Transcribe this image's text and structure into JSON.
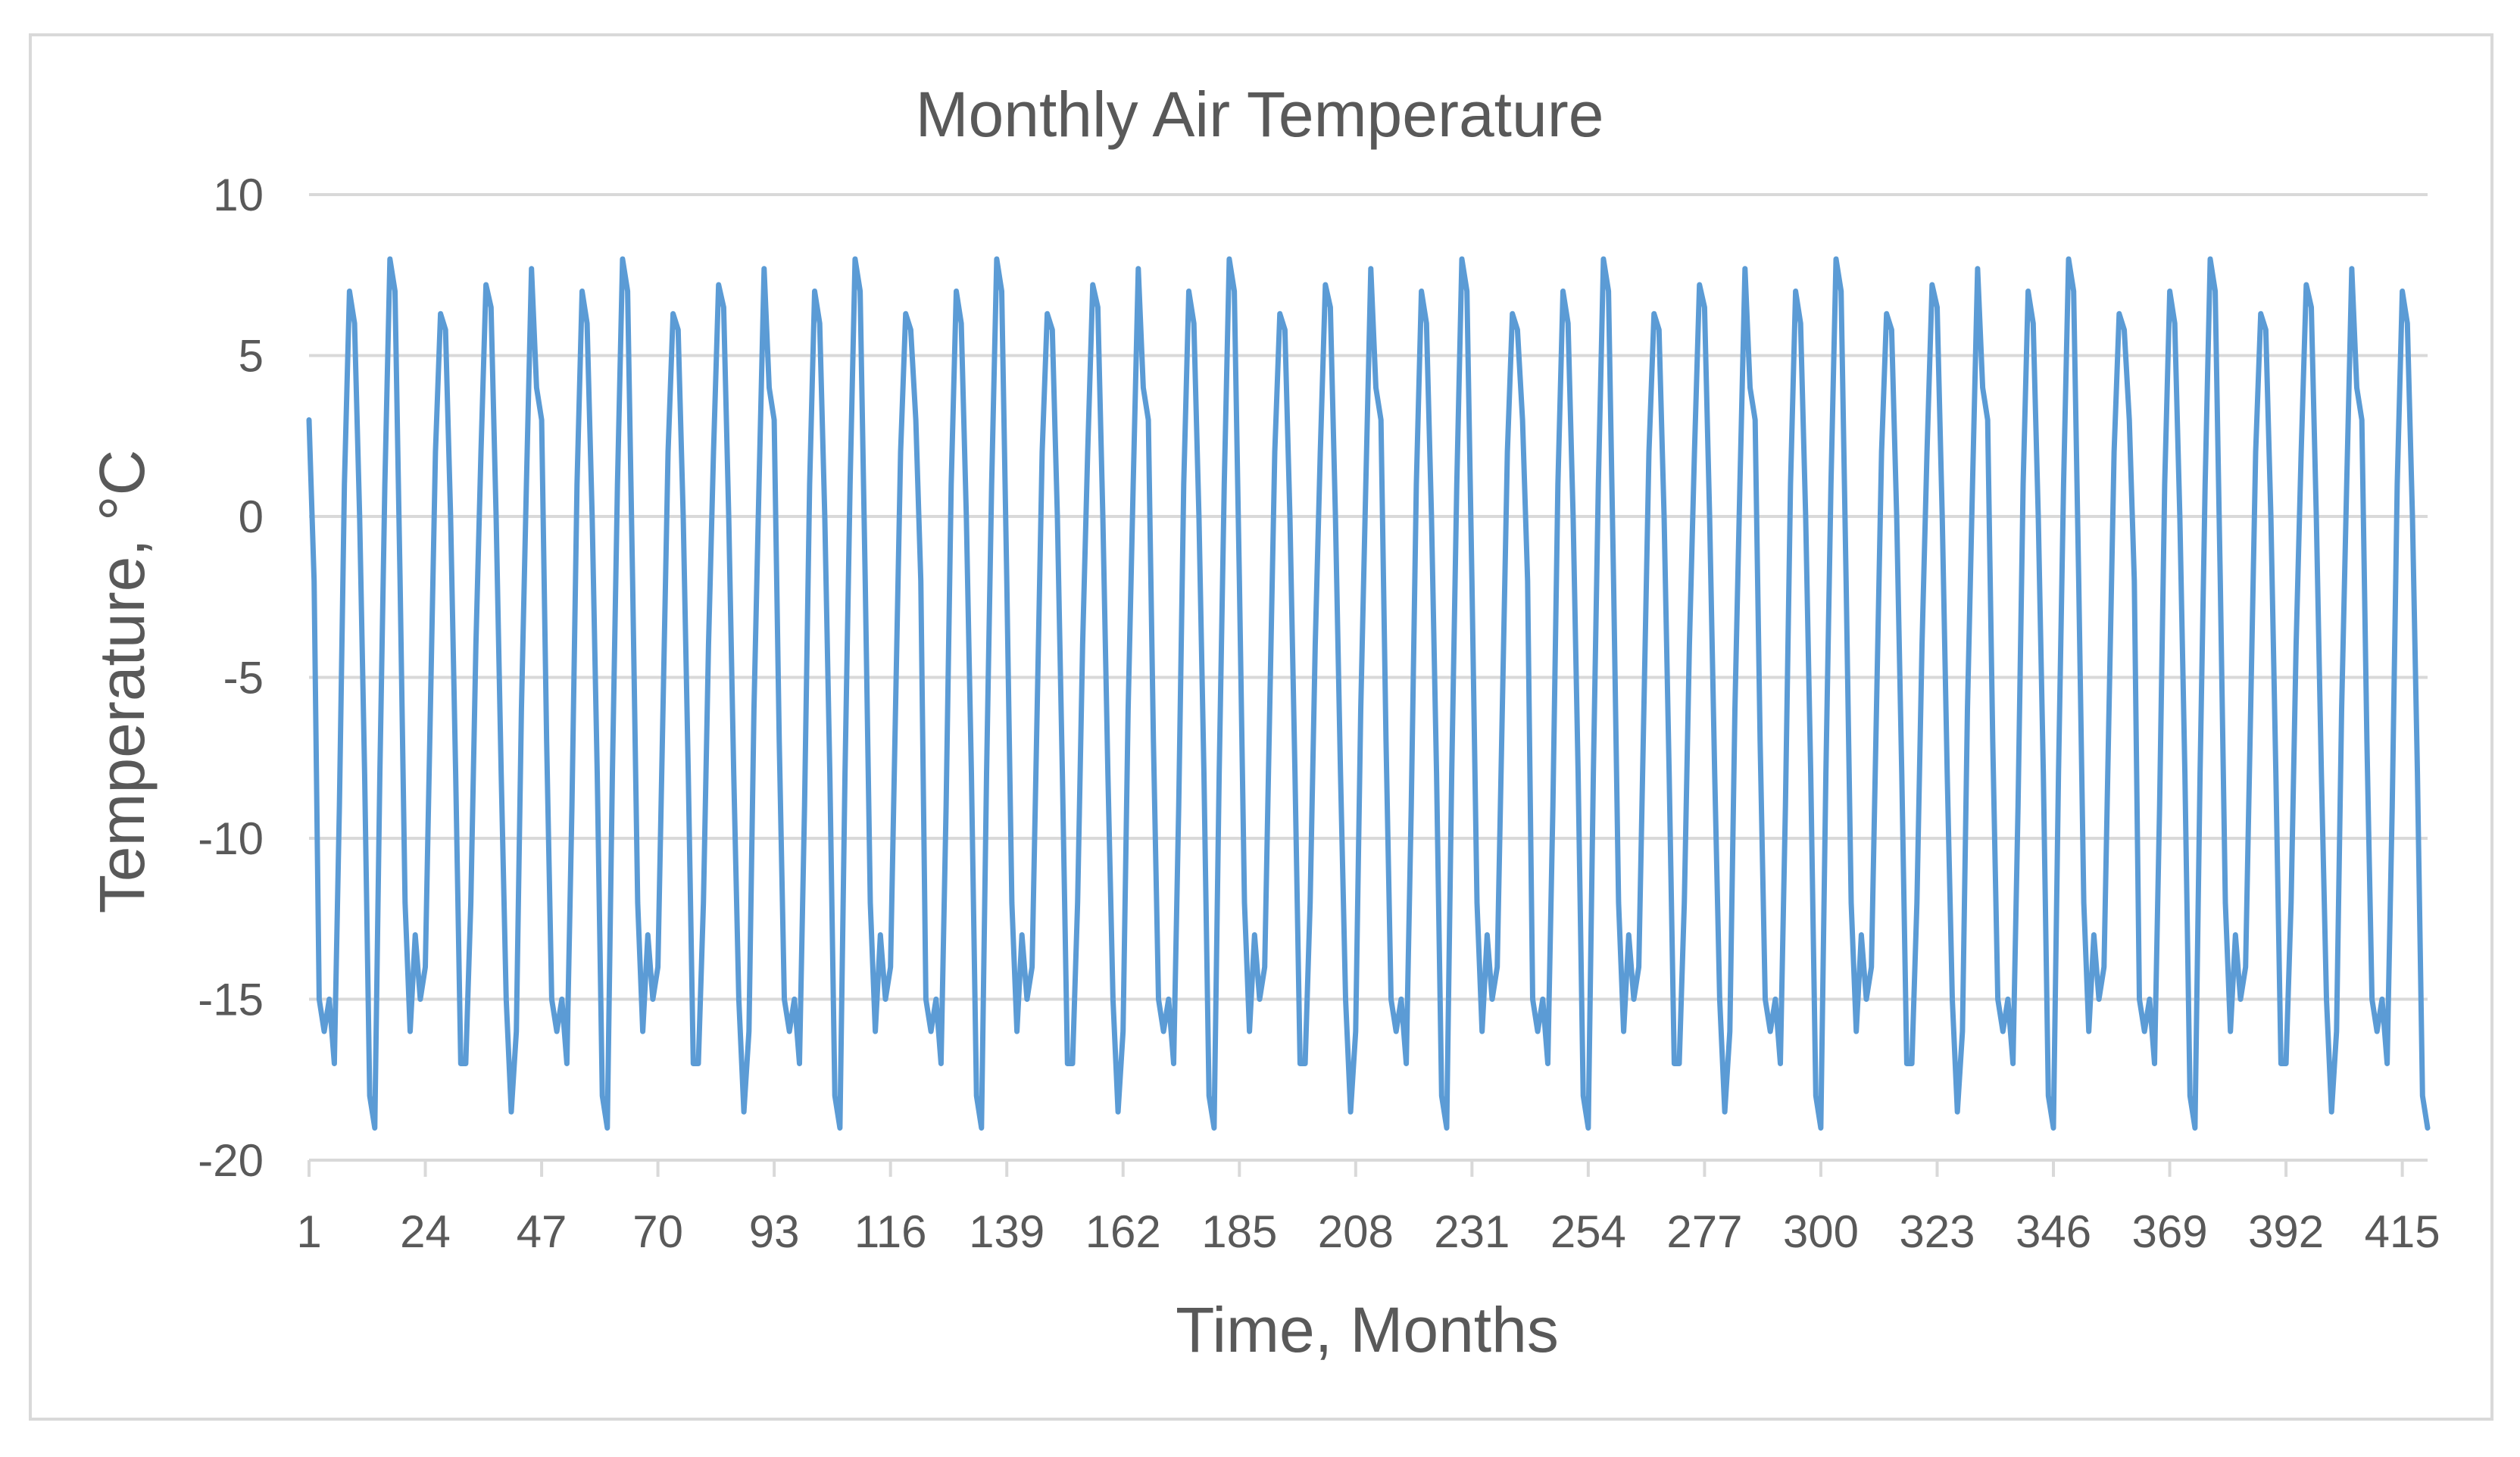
{
  "chart_data": {
    "type": "line",
    "title": "Monthly Air Temperature",
    "xlabel": "Time, Months",
    "ylabel": "Temperature, °C",
    "ylim": [
      -20,
      10
    ],
    "xlim": [
      1,
      420
    ],
    "y_ticks": [
      10,
      5,
      0,
      -5,
      -10,
      -15,
      -20
    ],
    "x_ticks": [
      1,
      24,
      47,
      70,
      93,
      116,
      139,
      162,
      185,
      208,
      231,
      254,
      277,
      300,
      323,
      346,
      369,
      392,
      415
    ],
    "grid": true,
    "legend": "none",
    "line_color": "#5b9bd5",
    "series": [
      {
        "cycle_months": 12,
        "repeat_cycles": 35,
        "first_month": 1,
        "cycles": [
          [
            3,
            -2,
            -15,
            -16,
            -15,
            -17,
            -9,
            1,
            7,
            6,
            0,
            -8
          ],
          [
            -18,
            -19,
            -8,
            1,
            8,
            7,
            -2,
            -12,
            -16,
            -13,
            -15,
            -14
          ],
          [
            -6,
            2,
            6.3,
            5.8,
            0,
            -8,
            -17,
            -17,
            -12,
            -4,
            2,
            7.2
          ],
          [
            6.5,
            0,
            -8,
            -15,
            -18.5,
            -16,
            -6,
            1,
            7.7,
            4,
            3,
            -7
          ],
          [
            -15,
            -16,
            -15,
            -17,
            -9,
            1,
            7,
            6,
            0,
            -8,
            -18,
            -19
          ],
          [
            -8,
            1,
            8,
            7,
            -2,
            -12,
            -16,
            -13,
            -15,
            -14,
            -6,
            2
          ],
          [
            6.3,
            5.8,
            0,
            -8,
            -17,
            -17,
            -12,
            -4,
            2,
            7.2,
            6.5,
            0
          ],
          [
            -8,
            -15,
            -18.5,
            -16,
            -6,
            1,
            7.7,
            4,
            3,
            -7,
            -15,
            -16
          ],
          [
            -15,
            -17,
            -9,
            1,
            7,
            6,
            0,
            -8,
            -18,
            -19,
            -8,
            1
          ],
          [
            8,
            7,
            -2,
            -12,
            -16,
            -13,
            -15,
            -14,
            -6,
            2,
            6.3,
            5.8
          ]
        ]
      }
    ]
  }
}
